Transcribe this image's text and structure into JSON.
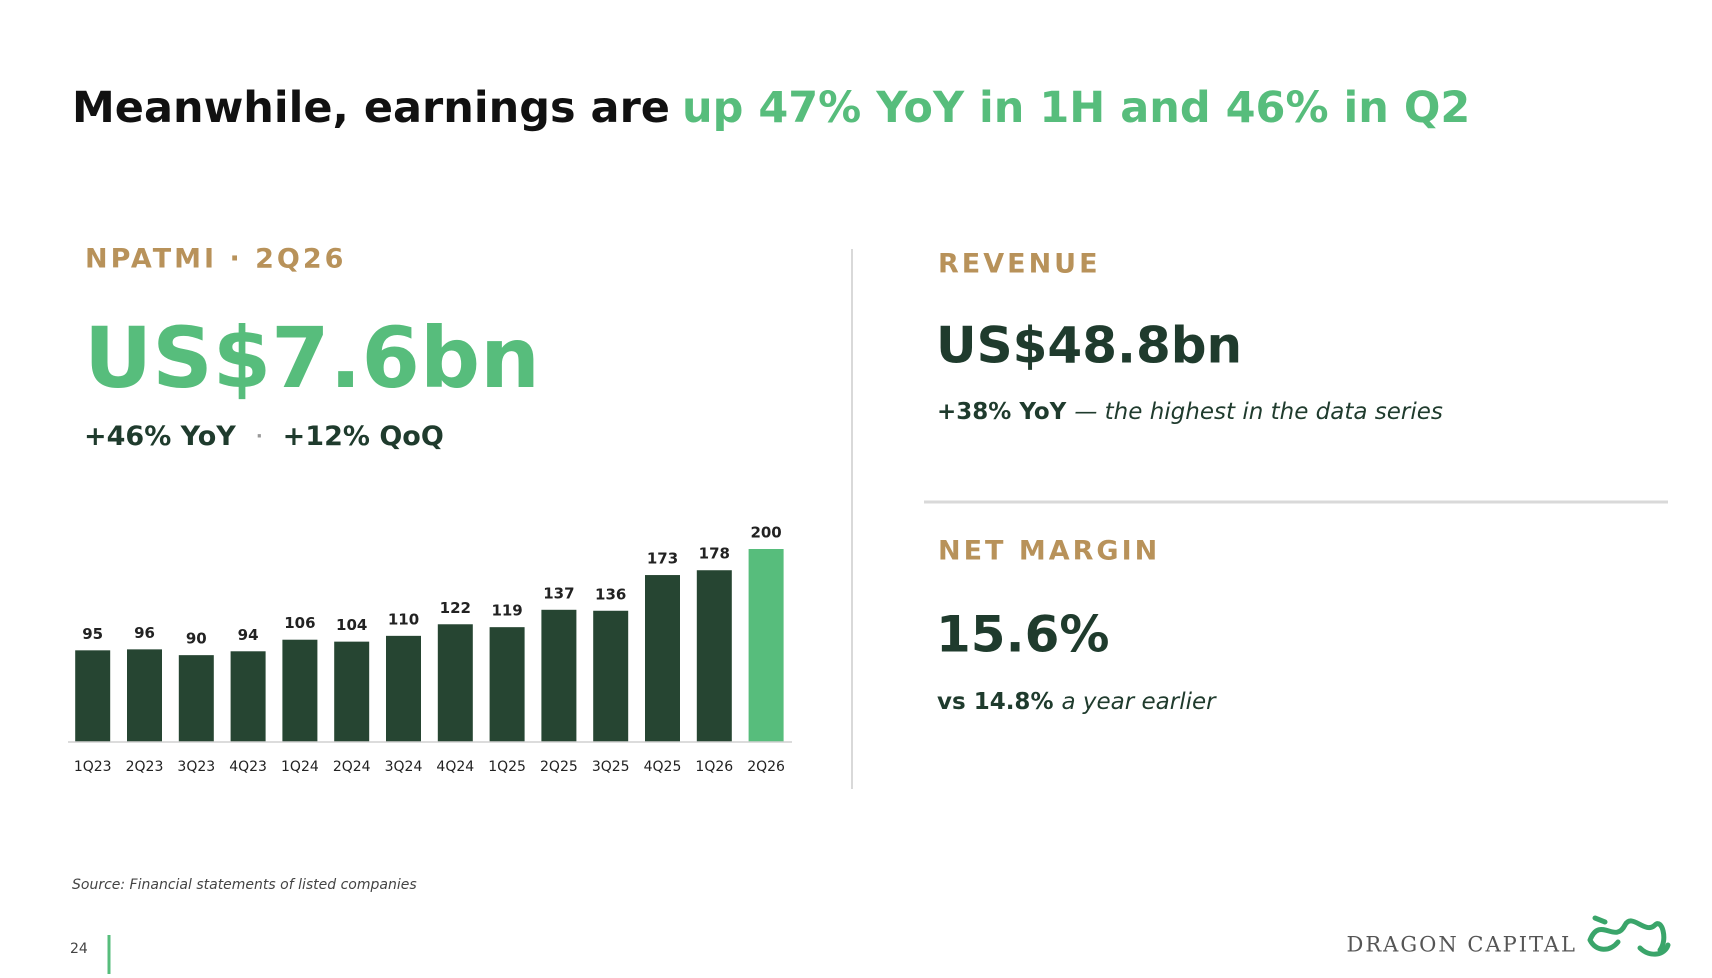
{
  "header": {
    "title_lead": "Meanwhile, earnings are",
    "title_highlight": "up 47% YoY in 1H and 46% in Q2"
  },
  "npatmi": {
    "label": "NPATMI · 2Q26",
    "value": "US$7.6bn",
    "yoy": "+46% YoY",
    "separator": "·",
    "qoq": "+12% QoQ"
  },
  "revenue": {
    "label": "REVENUE",
    "value": "US$48.8bn",
    "note_bold": "+38% YoY",
    "note_italic": "— the highest in the data series"
  },
  "net_margin": {
    "label": "NET MARGIN",
    "value": "15.6%",
    "note_bold": "vs 14.8%",
    "note_italic": "a year earlier"
  },
  "chart_data": {
    "type": "bar",
    "categories": [
      "1Q23",
      "2Q23",
      "3Q23",
      "4Q23",
      "1Q24",
      "2Q24",
      "3Q24",
      "4Q24",
      "1Q25",
      "2Q25",
      "3Q25",
      "4Q25",
      "1Q26",
      "2Q26"
    ],
    "values": [
      95,
      96,
      90,
      94,
      106,
      104,
      110,
      122,
      119,
      137,
      136,
      173,
      178,
      200
    ],
    "colors": [
      "#264532",
      "#264532",
      "#264532",
      "#264532",
      "#264532",
      "#264532",
      "#264532",
      "#264532",
      "#264532",
      "#264532",
      "#264532",
      "#264532",
      "#264532",
      "#57bd7c"
    ],
    "ylim": [
      0,
      200
    ]
  },
  "footer": {
    "source": "Source: Financial statements of listed companies",
    "page": "24",
    "brand": "DRAGON CAPITAL"
  }
}
